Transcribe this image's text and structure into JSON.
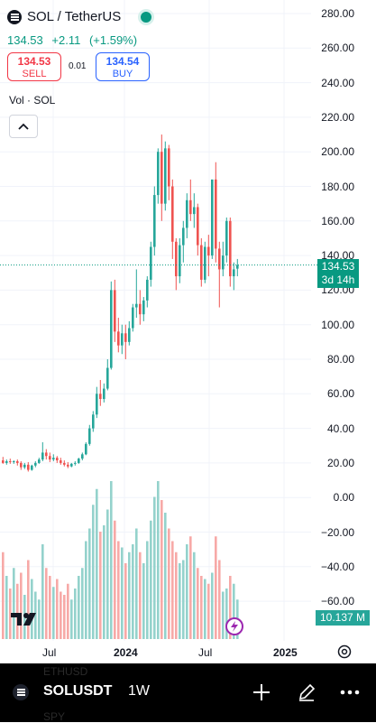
{
  "header": {
    "title": "SOL / TetherUS",
    "last_price": "134.53",
    "change": "+2.11",
    "change_pct": "(+1.59%)",
    "status_color": "#089981"
  },
  "trade": {
    "sell_price": "134.53",
    "sell_label": "SELL",
    "spread": "0.01",
    "buy_price": "134.54",
    "buy_label": "BUY"
  },
  "volume_legend": "Vol · SOL",
  "price_axis": {
    "ticks": [
      "280.00",
      "260.00",
      "240.00",
      "220.00",
      "200.00",
      "180.00",
      "160.00",
      "140.00",
      "120.00",
      "100.00",
      "80.00",
      "60.00",
      "40.00",
      "20.00",
      "0.00",
      "−20.00",
      "−40.00",
      "−60.00"
    ],
    "current_price": "134.53",
    "countdown": "3d 14h",
    "volume_value": "10.137 M"
  },
  "time_axis": {
    "labels": [
      "Jul",
      "2024",
      "Jul",
      "2025"
    ]
  },
  "colors": {
    "up": "#26a69a",
    "down": "#ef5350",
    "vol_up": "#94d2cc",
    "vol_down": "#f7a9a7",
    "current": "#089981"
  },
  "bottom_bar": {
    "symbol": "SOLUSDT",
    "interval": "1W",
    "ghost_above": "ETHUSD",
    "ghost_below": "SPY"
  },
  "icons": [
    "crypto-logo-icon",
    "market-open-dot",
    "chevron-up-icon",
    "tradingview-logo-icon",
    "lightning-icon",
    "settings-icon",
    "plus-icon",
    "pencil-icon",
    "more-icon"
  ],
  "chart_data": {
    "type": "candlestick",
    "interval": "1W",
    "ylim": [
      -60,
      280
    ],
    "xlabels": [
      "Jul",
      "2024",
      "Jul",
      "2025"
    ],
    "candles": [
      {
        "o": 21.5,
        "h": 23.5,
        "c": 20.0,
        "l": 19.5
      },
      {
        "o": 20.0,
        "h": 22.0,
        "c": 21.0,
        "l": 19.0
      },
      {
        "o": 21.0,
        "h": 22.5,
        "c": 20.5,
        "l": 19.5
      },
      {
        "o": 20.5,
        "h": 21.5,
        "c": 21.0,
        "l": 19.5
      },
      {
        "o": 21.0,
        "h": 22.0,
        "c": 20.0,
        "l": 18.5
      },
      {
        "o": 20.0,
        "h": 21.0,
        "c": 17.5,
        "l": 16.0
      },
      {
        "o": 17.5,
        "h": 20.0,
        "c": 19.0,
        "l": 16.5
      },
      {
        "o": 19.0,
        "h": 20.5,
        "c": 16.0,
        "l": 15.0
      },
      {
        "o": 16.0,
        "h": 19.0,
        "c": 18.5,
        "l": 15.5
      },
      {
        "o": 18.5,
        "h": 21.0,
        "c": 20.0,
        "l": 17.5
      },
      {
        "o": 20.0,
        "h": 23.0,
        "c": 22.0,
        "l": 19.5
      },
      {
        "o": 22.0,
        "h": 32.0,
        "c": 26.0,
        "l": 21.0
      },
      {
        "o": 26.0,
        "h": 28.0,
        "c": 24.0,
        "l": 22.0
      },
      {
        "o": 24.0,
        "h": 26.0,
        "c": 22.0,
        "l": 20.5
      },
      {
        "o": 22.0,
        "h": 25.0,
        "c": 23.0,
        "l": 21.0
      },
      {
        "o": 23.0,
        "h": 24.0,
        "c": 21.5,
        "l": 20.0
      },
      {
        "o": 21.5,
        "h": 23.0,
        "c": 20.0,
        "l": 19.0
      },
      {
        "o": 20.0,
        "h": 21.5,
        "c": 19.0,
        "l": 18.0
      },
      {
        "o": 19.0,
        "h": 20.5,
        "c": 18.0,
        "l": 17.0
      },
      {
        "o": 18.0,
        "h": 20.0,
        "c": 19.5,
        "l": 17.5
      },
      {
        "o": 19.5,
        "h": 21.0,
        "c": 20.0,
        "l": 18.5
      },
      {
        "o": 20.0,
        "h": 23.0,
        "c": 22.5,
        "l": 19.5
      },
      {
        "o": 22.5,
        "h": 26.0,
        "c": 25.0,
        "l": 21.5
      },
      {
        "o": 25.0,
        "h": 32.0,
        "c": 31.0,
        "l": 24.5
      },
      {
        "o": 31.0,
        "h": 42.0,
        "c": 40.0,
        "l": 30.0
      },
      {
        "o": 40.0,
        "h": 50.0,
        "c": 48.0,
        "l": 38.0
      },
      {
        "o": 48.0,
        "h": 64.0,
        "c": 60.0,
        "l": 46.0
      },
      {
        "o": 60.0,
        "h": 68.0,
        "c": 57.0,
        "l": 53.0
      },
      {
        "o": 57.0,
        "h": 66.0,
        "c": 63.0,
        "l": 55.0
      },
      {
        "o": 63.0,
        "h": 80.0,
        "c": 75.0,
        "l": 62.0
      },
      {
        "o": 75.0,
        "h": 125.0,
        "c": 120.0,
        "l": 74.0
      },
      {
        "o": 120.0,
        "h": 126.0,
        "c": 96.0,
        "l": 90.0
      },
      {
        "o": 96.0,
        "h": 104.0,
        "c": 88.0,
        "l": 84.0
      },
      {
        "o": 88.0,
        "h": 100.0,
        "c": 95.0,
        "l": 83.0
      },
      {
        "o": 95.0,
        "h": 100.0,
        "c": 90.0,
        "l": 80.0
      },
      {
        "o": 90.0,
        "h": 102.0,
        "c": 98.0,
        "l": 88.0
      },
      {
        "o": 98.0,
        "h": 112.0,
        "c": 110.0,
        "l": 96.0
      },
      {
        "o": 110.0,
        "h": 132.0,
        "c": 112.0,
        "l": 104.0
      },
      {
        "o": 112.0,
        "h": 120.0,
        "c": 106.0,
        "l": 100.0
      },
      {
        "o": 106.0,
        "h": 116.0,
        "c": 114.0,
        "l": 102.0
      },
      {
        "o": 114.0,
        "h": 128.0,
        "c": 126.0,
        "l": 110.0
      },
      {
        "o": 126.0,
        "h": 148.0,
        "c": 145.0,
        "l": 122.0
      },
      {
        "o": 145.0,
        "h": 180.0,
        "c": 175.0,
        "l": 140.0
      },
      {
        "o": 175.0,
        "h": 202.0,
        "c": 200.0,
        "l": 170.0
      },
      {
        "o": 200.0,
        "h": 210.0,
        "c": 170.0,
        "l": 160.0
      },
      {
        "o": 170.0,
        "h": 206.0,
        "c": 202.0,
        "l": 166.0
      },
      {
        "o": 202.0,
        "h": 204.0,
        "c": 180.0,
        "l": 172.0
      },
      {
        "o": 180.0,
        "h": 184.0,
        "c": 148.0,
        "l": 138.0
      },
      {
        "o": 148.0,
        "h": 150.0,
        "c": 128.0,
        "l": 120.0
      },
      {
        "o": 128.0,
        "h": 150.0,
        "c": 146.0,
        "l": 124.0
      },
      {
        "o": 146.0,
        "h": 160.0,
        "c": 156.0,
        "l": 136.0
      },
      {
        "o": 156.0,
        "h": 176.0,
        "c": 172.0,
        "l": 150.0
      },
      {
        "o": 172.0,
        "h": 184.0,
        "c": 164.0,
        "l": 160.0
      },
      {
        "o": 164.0,
        "h": 176.0,
        "c": 168.0,
        "l": 156.0
      },
      {
        "o": 168.0,
        "h": 170.0,
        "c": 146.0,
        "l": 140.0
      },
      {
        "o": 146.0,
        "h": 150.0,
        "c": 126.0,
        "l": 122.0
      },
      {
        "o": 126.0,
        "h": 148.0,
        "c": 145.0,
        "l": 124.0
      },
      {
        "o": 145.0,
        "h": 152.0,
        "c": 140.0,
        "l": 128.0
      },
      {
        "o": 140.0,
        "h": 182.0,
        "c": 184.0,
        "l": 138.0
      },
      {
        "o": 184.0,
        "h": 194.0,
        "c": 144.0,
        "l": 136.0
      },
      {
        "o": 144.0,
        "h": 148.0,
        "c": 132.0,
        "l": 110.0
      },
      {
        "o": 132.0,
        "h": 148.0,
        "c": 140.0,
        "l": 128.0
      },
      {
        "o": 140.0,
        "h": 162.0,
        "c": 160.0,
        "l": 136.0
      },
      {
        "o": 160.0,
        "h": 162.0,
        "c": 128.0,
        "l": 122.0
      },
      {
        "o": 128.0,
        "h": 136.0,
        "c": 132.0,
        "l": 120.0
      },
      {
        "o": 132.4,
        "h": 138.0,
        "c": 134.5,
        "l": 128.0
      }
    ],
    "volume_fraction": [
      0.55,
      0.4,
      0.32,
      0.45,
      0.35,
      0.42,
      0.28,
      0.5,
      0.38,
      0.3,
      0.25,
      0.6,
      0.45,
      0.4,
      0.33,
      0.38,
      0.3,
      0.28,
      0.35,
      0.25,
      0.32,
      0.4,
      0.45,
      0.62,
      0.7,
      0.85,
      0.95,
      0.68,
      0.72,
      0.82,
      1.0,
      0.75,
      0.62,
      0.58,
      0.48,
      0.55,
      0.6,
      0.7,
      0.55,
      0.48,
      0.62,
      0.75,
      0.9,
      1.0,
      0.88,
      0.8,
      0.7,
      0.62,
      0.55,
      0.48,
      0.5,
      0.6,
      0.65,
      0.55,
      0.45,
      0.4,
      0.38,
      0.35,
      0.42,
      0.65,
      0.5,
      0.3,
      0.32,
      0.4,
      0.35,
      0.25
    ],
    "current_price": 134.53,
    "volume": "10.137 M"
  }
}
